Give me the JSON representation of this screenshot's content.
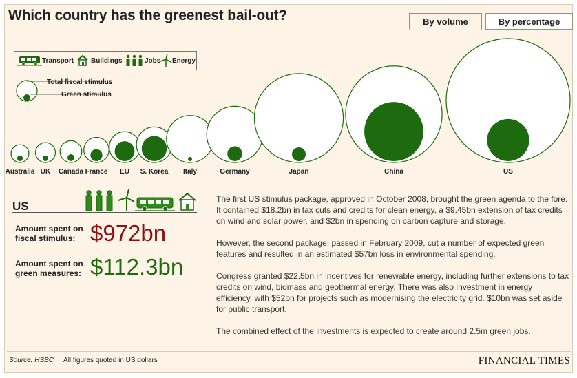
{
  "title": "Which country has the greenest bail-out?",
  "tabs": [
    {
      "label": "By volume",
      "active": true
    },
    {
      "label": "By percentage",
      "active": false
    }
  ],
  "legend": {
    "icons": [
      {
        "label": "Transport",
        "icon": "bus-icon"
      },
      {
        "label": "Buildings",
        "icon": "house-icon"
      },
      {
        "label": "Jobs",
        "icon": "workers-icon"
      },
      {
        "label": "Energy",
        "icon": "wind-turbine-icon"
      }
    ],
    "total_label": "Total fiscal stimulus",
    "green_label": "Green stimulus"
  },
  "colors": {
    "green": "#1e6b0f",
    "red": "#8e1212",
    "background": "#fdf3e6"
  },
  "chart_data": {
    "type": "bubble",
    "unit": "$bn",
    "series": [
      {
        "name": "Total fiscal stimulus",
        "values": [
          20,
          25,
          30,
          40,
          60,
          80,
          140,
          200,
          500,
          590,
          972
        ]
      },
      {
        "name": "Green stimulus",
        "values": [
          2,
          2,
          3,
          9,
          25,
          40,
          1,
          14,
          12,
          221,
          112.3
        ]
      }
    ],
    "categories": [
      "Australia",
      "UK",
      "Canada",
      "France",
      "EU",
      "S. Korea",
      "Italy",
      "Germany",
      "Japan",
      "China",
      "US"
    ]
  },
  "detail": {
    "country": "US",
    "fiscal_label_1": "Amount spent on",
    "fiscal_label_2": "fiscal stimulus:",
    "fiscal_value": "$972bn",
    "green_label_1": "Amount spent on",
    "green_label_2": "green measures:",
    "green_value": "$112.3bn",
    "paragraphs": [
      "The first US stimulus package, approved in October 2008, brought the green agenda to the fore. It contained $18.2bn in tax cuts and credits for clean energy, a $9.45bn extension of tax credits on wind and solar power, and $2bn in spending on carbon capture and storage.",
      "However, the second package, passed in February 2009, cut a number of expected green features and resulted in an estimated $57bn loss in environmental spending.",
      "Congress granted $22.5bn in incentives for renewable energy, including further extensions to tax credits on wind, biomass and geothermal energy. There was also investment in energy efficiency, with $52bn for projects such as modernising the electricity grid. $10bn was set aside for public transport.",
      "The combined effect of the investments is expected to create around 2.5m green jobs."
    ]
  },
  "footer": {
    "source": "Source: HSBC",
    "note": "All figures quoted in US dollars",
    "brand": "FINANCIAL TIMES"
  }
}
